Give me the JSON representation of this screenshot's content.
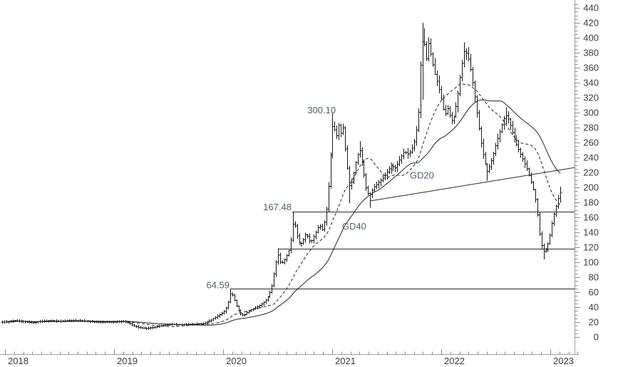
{
  "chart_data": {
    "type": "ohlc",
    "title": "",
    "timeframe": "weekly",
    "x_axis": {
      "labels": [
        "2018",
        "2019",
        "2020",
        "2021",
        "2022",
        "2023"
      ],
      "minor_tick": "monthly",
      "t_start": 2017.975,
      "t_end": 2023.1
    },
    "y_axis": {
      "min": 0,
      "max": 440,
      "label_step": 20,
      "minor_step": 5,
      "tick_labels": [
        "0",
        "20",
        "40",
        "60",
        "80",
        "100",
        "120",
        "140",
        "160",
        "180",
        "200",
        "220",
        "240",
        "260",
        "280",
        "300",
        "320",
        "340",
        "360",
        "380",
        "400",
        "420",
        "440"
      ]
    },
    "series_legend": [
      {
        "name": "GD20",
        "style": "dashed"
      },
      {
        "name": "GD40",
        "style": "solid"
      }
    ],
    "ma_periods": {
      "gd20": 20,
      "gd40": 40
    },
    "weekly_close_anchors": [
      [
        2017.975,
        20
      ],
      [
        2018.0,
        20
      ],
      [
        2018.08,
        22
      ],
      [
        2018.16,
        21
      ],
      [
        2018.25,
        19
      ],
      [
        2018.33,
        21
      ],
      [
        2018.42,
        22
      ],
      [
        2018.5,
        21
      ],
      [
        2018.58,
        22
      ],
      [
        2018.67,
        22
      ],
      [
        2018.75,
        21
      ],
      [
        2018.83,
        20
      ],
      [
        2018.92,
        20
      ],
      [
        2019.0,
        20
      ],
      [
        2019.08,
        21
      ],
      [
        2019.13,
        19
      ],
      [
        2019.18,
        15
      ],
      [
        2019.23,
        12.5
      ],
      [
        2019.3,
        11.5
      ],
      [
        2019.36,
        13
      ],
      [
        2019.44,
        15.5
      ],
      [
        2019.52,
        17
      ],
      [
        2019.6,
        16.5
      ],
      [
        2019.68,
        17
      ],
      [
        2019.76,
        17.5
      ],
      [
        2019.82,
        18
      ],
      [
        2019.88,
        22
      ],
      [
        2019.94,
        27
      ],
      [
        2020.0,
        33
      ],
      [
        2020.02,
        37
      ],
      [
        2020.045,
        47
      ],
      [
        2020.07,
        61
      ],
      [
        2020.1,
        50
      ],
      [
        2020.13,
        38
      ],
      [
        2020.16,
        31
      ],
      [
        2020.19,
        29
      ],
      [
        2020.22,
        33
      ],
      [
        2020.26,
        37
      ],
      [
        2020.31,
        40
      ],
      [
        2020.36,
        45
      ],
      [
        2020.4,
        51
      ],
      [
        2020.44,
        63
      ],
      [
        2020.47,
        87
      ],
      [
        2020.5,
        112
      ],
      [
        2020.53,
        97
      ],
      [
        2020.57,
        105
      ],
      [
        2020.61,
        119
      ],
      [
        2020.64,
        152
      ],
      [
        2020.66,
        148
      ],
      [
        2020.69,
        126
      ],
      [
        2020.72,
        125
      ],
      [
        2020.76,
        139
      ],
      [
        2020.8,
        126
      ],
      [
        2020.84,
        137
      ],
      [
        2020.88,
        150
      ],
      [
        2020.91,
        143
      ],
      [
        2020.94,
        162
      ],
      [
        2020.97,
        210
      ],
      [
        2021.0,
        282
      ],
      [
        2021.02,
        278
      ],
      [
        2021.04,
        268
      ],
      [
        2021.06,
        283
      ],
      [
        2021.08,
        272
      ],
      [
        2021.1,
        280
      ],
      [
        2021.12,
        248
      ],
      [
        2021.14,
        222
      ],
      [
        2021.16,
        198
      ],
      [
        2021.19,
        216
      ],
      [
        2021.22,
        238
      ],
      [
        2021.25,
        251
      ],
      [
        2021.28,
        226
      ],
      [
        2021.31,
        199
      ],
      [
        2021.34,
        188
      ],
      [
        2021.38,
        200
      ],
      [
        2021.42,
        206
      ],
      [
        2021.46,
        212
      ],
      [
        2021.5,
        220
      ],
      [
        2021.54,
        229
      ],
      [
        2021.58,
        226
      ],
      [
        2021.62,
        238
      ],
      [
        2021.66,
        248
      ],
      [
        2021.7,
        244
      ],
      [
        2021.73,
        252
      ],
      [
        2021.76,
        265
      ],
      [
        2021.79,
        302
      ],
      [
        2021.815,
        388
      ],
      [
        2021.84,
        402
      ],
      [
        2021.86,
        366
      ],
      [
        2021.885,
        393
      ],
      [
        2021.91,
        373
      ],
      [
        2021.94,
        352
      ],
      [
        2021.97,
        338
      ],
      [
        2022.0,
        318
      ],
      [
        2022.03,
        296
      ],
      [
        2022.06,
        306
      ],
      [
        2022.09,
        288
      ],
      [
        2022.12,
        296
      ],
      [
        2022.15,
        322
      ],
      [
        2022.18,
        356
      ],
      [
        2022.21,
        382
      ],
      [
        2022.24,
        378
      ],
      [
        2022.27,
        356
      ],
      [
        2022.3,
        328
      ],
      [
        2022.33,
        294
      ],
      [
        2022.36,
        262
      ],
      [
        2022.39,
        238
      ],
      [
        2022.42,
        221
      ],
      [
        2022.45,
        231
      ],
      [
        2022.48,
        246
      ],
      [
        2022.51,
        262
      ],
      [
        2022.54,
        276
      ],
      [
        2022.57,
        291
      ],
      [
        2022.6,
        297
      ],
      [
        2022.63,
        284
      ],
      [
        2022.66,
        269
      ],
      [
        2022.69,
        257
      ],
      [
        2022.72,
        247
      ],
      [
        2022.75,
        237
      ],
      [
        2022.78,
        227
      ],
      [
        2022.81,
        214
      ],
      [
        2022.84,
        199
      ],
      [
        2022.87,
        178
      ],
      [
        2022.9,
        138
      ],
      [
        2022.93,
        114
      ],
      [
        2022.96,
        117
      ],
      [
        2022.99,
        131
      ],
      [
        2023.02,
        156
      ],
      [
        2023.05,
        173
      ],
      [
        2023.08,
        189
      ],
      [
        2023.1,
        196
      ]
    ],
    "key_extremes": [
      {
        "t": 2020.07,
        "high": 64.59,
        "clamp": 4
      },
      {
        "t": 2020.19,
        "low": 27.5,
        "clamp": 2
      },
      {
        "t": 2020.5,
        "high": 118.5,
        "clamp": 3
      },
      {
        "t": 2020.64,
        "high": 167.48,
        "clamp": 3
      },
      {
        "t": 2021.0,
        "high": 300.1,
        "clamp": 6
      },
      {
        "t": 2021.16,
        "low": 179,
        "clamp": 2
      },
      {
        "t": 2021.25,
        "high": 262,
        "clamp": 2
      },
      {
        "t": 2021.34,
        "low": 173,
        "clamp": 2
      },
      {
        "t": 2021.82,
        "high": 420,
        "low": 317,
        "clamp": 0
      },
      {
        "t": 2021.845,
        "high": 413,
        "clamp": 0
      },
      {
        "t": 2022.21,
        "high": 394,
        "clamp": 2
      },
      {
        "t": 2022.42,
        "low": 209,
        "clamp": 2
      },
      {
        "t": 2022.6,
        "high": 307,
        "clamp": 2
      },
      {
        "t": 2022.93,
        "low": 104,
        "clamp": 2
      },
      {
        "t": 2023.098,
        "high": 201,
        "clamp": 2
      }
    ],
    "support_lines": [
      {
        "price": 167.48,
        "t_start": 2020.634
      },
      {
        "price": 118.5,
        "t_start": 2020.503
      },
      {
        "price": 64.59,
        "t_start": 2020.065
      }
    ],
    "trend_line": {
      "p1": {
        "t": 2021.353,
        "price": 182
      },
      "p2": {
        "t": 2023.224,
        "price": 226.5
      }
    },
    "annotations": [
      {
        "text": "300.10",
        "t": 2021.033,
        "price": 299,
        "anchor": "end"
      },
      {
        "text": "167.48",
        "t": 2020.627,
        "price": 169.5,
        "anchor": "end"
      },
      {
        "text": "64.59",
        "t": 2020.059,
        "price": 65.3,
        "anchor": "end"
      },
      {
        "text": "GD20",
        "t": 2021.712,
        "price": 212,
        "anchor": "start"
      },
      {
        "text": "GD40",
        "t": 2021.091,
        "price": 144,
        "anchor": "start"
      }
    ]
  },
  "colors": {
    "background": "#ffffff",
    "bar": "#161616",
    "ma_line": "#222222",
    "support_line": "#2b2b2b",
    "trend_line": "#2b2b2b",
    "axis_line": "#a0a0a0",
    "tick": "#8a8a8a",
    "axis_text": "#3b3b3b",
    "annotation_text": "#50606c"
  }
}
